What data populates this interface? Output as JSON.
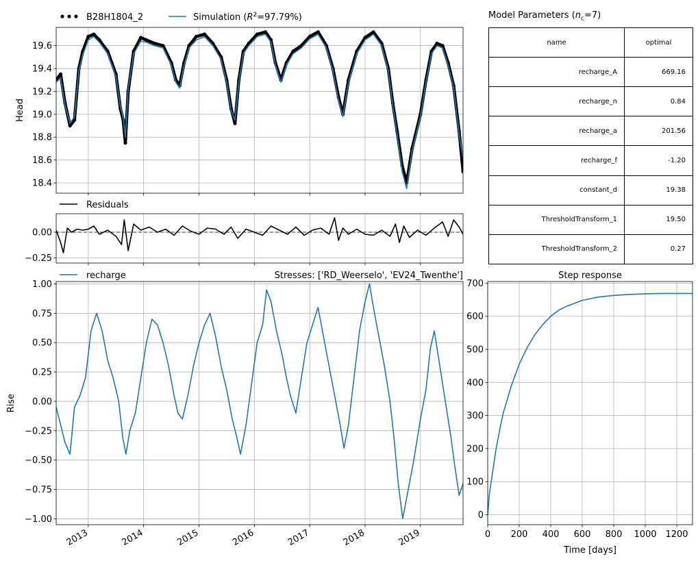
{
  "chart_data": [
    {
      "id": "head",
      "type": "line",
      "ylabel": "Head",
      "ylim": [
        18.31,
        19.76
      ],
      "xlim": [
        2012.42,
        2019.77
      ],
      "yticks": [
        18.4,
        18.6,
        18.8,
        19.0,
        19.2,
        19.4,
        19.6
      ],
      "ytick_labels": [
        "18.4",
        "18.6",
        "18.8",
        "19.0",
        "19.2",
        "19.4",
        "19.6"
      ],
      "grid": true,
      "legend": "top-left, above plot",
      "series": [
        {
          "name": "B28H1804_2",
          "style": "dots",
          "color": "#000000",
          "x": [
            2012.42,
            2012.5,
            2012.58,
            2012.67,
            2012.75,
            2012.83,
            2012.9,
            2013.0,
            2013.1,
            2013.2,
            2013.35,
            2013.5,
            2013.58,
            2013.63,
            2013.67,
            2013.72,
            2013.82,
            2013.95,
            2014.05,
            2014.2,
            2014.35,
            2014.5,
            2014.58,
            2014.65,
            2014.73,
            2014.82,
            2014.95,
            2015.1,
            2015.25,
            2015.4,
            2015.5,
            2015.58,
            2015.65,
            2015.72,
            2015.8,
            2015.9,
            2016.05,
            2016.2,
            2016.3,
            2016.38,
            2016.48,
            2016.58,
            2016.7,
            2016.85,
            2017.0,
            2017.15,
            2017.3,
            2017.42,
            2017.52,
            2017.6,
            2017.7,
            2017.85,
            2018.0,
            2018.15,
            2018.3,
            2018.42,
            2018.5,
            2018.58,
            2018.67,
            2018.75,
            2018.85,
            2019.0,
            2019.1,
            2019.2,
            2019.3,
            2019.4,
            2019.5,
            2019.6,
            2019.7,
            2019.77
          ],
          "y": [
            19.3,
            19.35,
            19.1,
            18.9,
            18.95,
            19.4,
            19.55,
            19.68,
            19.7,
            19.65,
            19.55,
            19.35,
            19.05,
            18.95,
            18.75,
            19.2,
            19.55,
            19.67,
            19.65,
            19.62,
            19.6,
            19.45,
            19.3,
            19.25,
            19.45,
            19.6,
            19.68,
            19.7,
            19.62,
            19.5,
            19.3,
            19.05,
            18.92,
            19.3,
            19.55,
            19.62,
            19.7,
            19.72,
            19.65,
            19.45,
            19.3,
            19.45,
            19.55,
            19.6,
            19.68,
            19.72,
            19.6,
            19.4,
            19.15,
            19.0,
            19.3,
            19.55,
            19.67,
            19.72,
            19.62,
            19.4,
            19.1,
            18.85,
            18.55,
            18.4,
            18.7,
            19.0,
            19.3,
            19.55,
            19.62,
            19.6,
            19.45,
            19.25,
            18.85,
            18.5
          ]
        },
        {
          "name": "Simulation ($R^2$=97.79%)",
          "style": "line",
          "color": "#1f77b4",
          "x": [
            2012.42,
            2012.5,
            2012.58,
            2012.67,
            2012.75,
            2012.83,
            2012.9,
            2013.0,
            2013.1,
            2013.2,
            2013.35,
            2013.5,
            2013.58,
            2013.63,
            2013.67,
            2013.72,
            2013.82,
            2013.95,
            2014.05,
            2014.2,
            2014.35,
            2014.5,
            2014.58,
            2014.65,
            2014.73,
            2014.82,
            2014.95,
            2015.1,
            2015.25,
            2015.4,
            2015.5,
            2015.58,
            2015.65,
            2015.72,
            2015.8,
            2015.9,
            2016.05,
            2016.2,
            2016.3,
            2016.38,
            2016.48,
            2016.58,
            2016.7,
            2016.85,
            2017.0,
            2017.15,
            2017.3,
            2017.42,
            2017.52,
            2017.6,
            2017.7,
            2017.85,
            2018.0,
            2018.15,
            2018.3,
            2018.42,
            2018.5,
            2018.58,
            2018.67,
            2018.75,
            2018.85,
            2019.0,
            2019.1,
            2019.2,
            2019.3,
            2019.4,
            2019.5,
            2019.6,
            2019.7,
            2019.77
          ],
          "y": [
            19.28,
            19.32,
            19.08,
            18.92,
            18.98,
            19.38,
            19.52,
            19.65,
            19.68,
            19.63,
            19.53,
            19.33,
            19.07,
            18.97,
            18.8,
            19.22,
            19.53,
            19.64,
            19.63,
            19.6,
            19.58,
            19.43,
            19.28,
            19.23,
            19.43,
            19.58,
            19.65,
            19.68,
            19.6,
            19.48,
            19.28,
            19.03,
            18.95,
            19.28,
            19.53,
            19.6,
            19.68,
            19.7,
            19.63,
            19.43,
            19.28,
            19.43,
            19.53,
            19.58,
            19.66,
            19.7,
            19.58,
            19.38,
            19.12,
            18.98,
            19.28,
            19.53,
            19.65,
            19.7,
            19.6,
            19.38,
            19.08,
            18.82,
            18.5,
            18.35,
            18.68,
            18.98,
            19.28,
            19.53,
            19.6,
            19.58,
            19.43,
            19.23,
            18.82,
            18.62
          ]
        }
      ]
    },
    {
      "id": "residuals",
      "type": "line",
      "ylim": [
        -0.3,
        0.18
      ],
      "xlim": [
        2012.42,
        2019.77
      ],
      "yticks": [
        -0.25,
        0.0
      ],
      "ytick_labels": [
        "−0.25",
        "0.00"
      ],
      "grid": true,
      "legend": "top-left, above plot",
      "series": [
        {
          "name": "Residuals",
          "color": "#000000",
          "x": [
            2012.42,
            2012.5,
            2012.55,
            2012.62,
            2012.7,
            2012.8,
            2012.9,
            2013.0,
            2013.1,
            2013.2,
            2013.35,
            2013.5,
            2013.6,
            2013.65,
            2013.72,
            2013.82,
            2013.95,
            2014.1,
            2014.25,
            2014.4,
            2014.55,
            2014.7,
            2014.85,
            2015.0,
            2015.15,
            2015.3,
            2015.45,
            2015.58,
            2015.7,
            2015.85,
            2016.0,
            2016.15,
            2016.3,
            2016.45,
            2016.6,
            2016.75,
            2016.9,
            2017.05,
            2017.2,
            2017.35,
            2017.45,
            2017.52,
            2017.6,
            2017.7,
            2017.85,
            2018.0,
            2018.15,
            2018.3,
            2018.45,
            2018.55,
            2018.62,
            2018.7,
            2018.8,
            2018.95,
            2019.1,
            2019.25,
            2019.4,
            2019.5,
            2019.6,
            2019.7,
            2019.77
          ],
          "y": [
            0.02,
            -0.1,
            -0.2,
            0.04,
            0.0,
            0.03,
            0.02,
            0.03,
            0.06,
            -0.02,
            0.02,
            -0.04,
            -0.12,
            0.12,
            -0.18,
            0.08,
            0.02,
            0.05,
            0.0,
            0.03,
            -0.03,
            0.06,
            0.01,
            -0.02,
            0.04,
            0.03,
            -0.02,
            0.05,
            -0.06,
            0.03,
            0.0,
            -0.03,
            0.06,
            0.02,
            -0.02,
            0.05,
            -0.03,
            0.02,
            0.04,
            -0.02,
            0.14,
            -0.08,
            0.04,
            -0.02,
            0.03,
            -0.02,
            -0.03,
            0.02,
            -0.04,
            0.08,
            -0.1,
            0.06,
            -0.05,
            0.02,
            -0.03,
            0.04,
            0.1,
            -0.04,
            0.12,
            0.05,
            -0.02
          ]
        }
      ]
    },
    {
      "id": "contribution",
      "type": "line",
      "ylabel": "Rise",
      "title_right": "Stresses: ['RD_Weerselo', 'EV24_Twenthe']",
      "ylim": [
        -1.05,
        1.02
      ],
      "xlim": [
        2012.42,
        2019.77
      ],
      "yticks": [
        -1.0,
        -0.75,
        -0.5,
        -0.25,
        0.0,
        0.25,
        0.5,
        0.75,
        1.0
      ],
      "ytick_labels": [
        "−1.00",
        "−0.75",
        "−0.50",
        "−0.25",
        "0.00",
        "0.25",
        "0.50",
        "0.75",
        "1.00"
      ],
      "xticks": [
        2013.0,
        2014.0,
        2015.0,
        2016.0,
        2017.0,
        2018.0,
        2019.0
      ],
      "xtick_labels": [
        "2013",
        "2014",
        "2015",
        "2016",
        "2017",
        "2018",
        "2019"
      ],
      "grid": true,
      "legend": "top-left, above plot",
      "series": [
        {
          "name": "recharge",
          "color": "#1f77b4",
          "x": [
            2012.42,
            2012.5,
            2012.58,
            2012.67,
            2012.75,
            2012.85,
            2012.95,
            2013.05,
            2013.15,
            2013.25,
            2013.35,
            2013.45,
            2013.55,
            2013.62,
            2013.68,
            2013.75,
            2013.85,
            2013.95,
            2014.05,
            2014.15,
            2014.25,
            2014.35,
            2014.45,
            2014.55,
            2014.62,
            2014.7,
            2014.8,
            2014.9,
            2015.0,
            2015.1,
            2015.2,
            2015.3,
            2015.4,
            2015.5,
            2015.6,
            2015.68,
            2015.75,
            2015.85,
            2015.95,
            2016.05,
            2016.15,
            2016.22,
            2016.3,
            2016.4,
            2016.5,
            2016.58,
            2016.65,
            2016.75,
            2016.85,
            2016.95,
            2017.05,
            2017.15,
            2017.25,
            2017.35,
            2017.45,
            2017.55,
            2017.62,
            2017.7,
            2017.8,
            2017.9,
            2018.0,
            2018.08,
            2018.15,
            2018.25,
            2018.35,
            2018.45,
            2018.52,
            2018.6,
            2018.68,
            2018.78,
            2018.88,
            2019.0,
            2019.1,
            2019.18,
            2019.25,
            2019.35,
            2019.45,
            2019.55,
            2019.62,
            2019.7,
            2019.77
          ],
          "y": [
            -0.05,
            -0.2,
            -0.35,
            -0.45,
            -0.05,
            0.05,
            0.2,
            0.6,
            0.75,
            0.6,
            0.35,
            0.2,
            0.0,
            -0.3,
            -0.45,
            -0.25,
            -0.1,
            0.2,
            0.5,
            0.7,
            0.65,
            0.5,
            0.3,
            0.05,
            -0.1,
            -0.15,
            0.05,
            0.3,
            0.5,
            0.65,
            0.75,
            0.55,
            0.3,
            0.1,
            -0.15,
            -0.3,
            -0.45,
            -0.2,
            0.15,
            0.5,
            0.65,
            0.95,
            0.85,
            0.6,
            0.4,
            0.2,
            0.05,
            -0.1,
            0.2,
            0.5,
            0.65,
            0.8,
            0.55,
            0.3,
            0.05,
            -0.2,
            -0.4,
            -0.2,
            0.2,
            0.6,
            0.85,
            1.0,
            0.8,
            0.55,
            0.3,
            0.0,
            -0.3,
            -0.7,
            -1.0,
            -0.75,
            -0.5,
            -0.15,
            0.1,
            0.45,
            0.6,
            0.3,
            0.0,
            -0.3,
            -0.55,
            -0.8,
            -0.7
          ]
        }
      ]
    },
    {
      "id": "step-response",
      "type": "line",
      "title": "Step response",
      "xlabel": "Time [days]",
      "xlim": [
        0,
        1300
      ],
      "ylim": [
        -30,
        705
      ],
      "xticks": [
        0,
        200,
        400,
        600,
        800,
        1000,
        1200
      ],
      "xtick_labels": [
        "0",
        "200",
        "400",
        "600",
        "800",
        "1000",
        "1200"
      ],
      "yticks": [
        0,
        100,
        200,
        300,
        400,
        500,
        600,
        700
      ],
      "ytick_labels": [
        "0",
        "100",
        "200",
        "300",
        "400",
        "500",
        "600",
        "700"
      ],
      "grid": true,
      "series": [
        {
          "color": "#1f77b4",
          "x": [
            0,
            10,
            25,
            50,
            75,
            100,
            150,
            200,
            250,
            300,
            350,
            400,
            450,
            500,
            600,
            700,
            800,
            900,
            1000,
            1100,
            1200,
            1300
          ],
          "y": [
            0,
            60,
            110,
            190,
            255,
            310,
            390,
            455,
            505,
            545,
            575,
            600,
            618,
            630,
            648,
            658,
            663,
            666,
            668,
            669,
            669,
            669
          ]
        }
      ]
    }
  ],
  "parameters": {
    "title": "Model Parameters ($n_c$=7)",
    "columns": [
      "name",
      "optimal"
    ],
    "rows": [
      [
        "recharge_A",
        "669.16"
      ],
      [
        "recharge_n",
        "0.84"
      ],
      [
        "recharge_a",
        "201.56"
      ],
      [
        "recharge_f",
        "-1.20"
      ],
      [
        "constant_d",
        "19.38"
      ],
      [
        "ThresholdTransform_1",
        "19.50"
      ],
      [
        "ThresholdTransform_2",
        "0.27"
      ]
    ]
  }
}
